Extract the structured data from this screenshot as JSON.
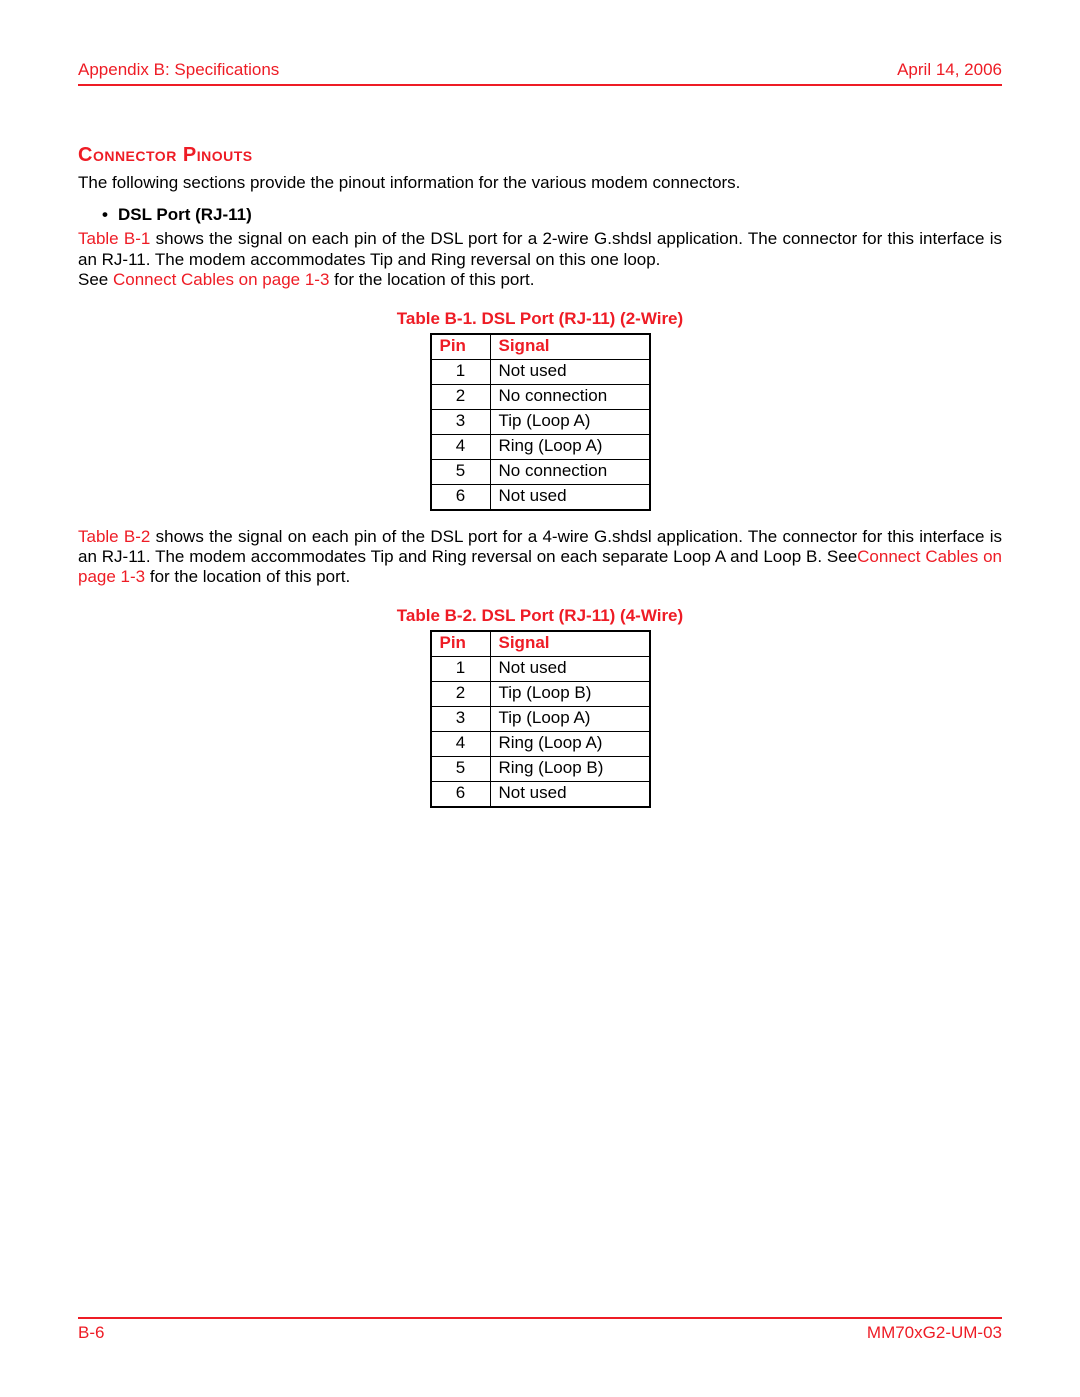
{
  "header": {
    "left": "Appendix B: Specifications",
    "right": "April 14, 2006"
  },
  "section_title": "Connector Pinouts",
  "intro": "The following sections provide the pinout information for the various modem connectors.",
  "bullet1": "DSL Port (RJ-11)",
  "para1": {
    "link1": "Table B-1",
    "text1": " shows the signal on each pin of the DSL port for a 2-wire G.shdsl application. The connector for this interface is an RJ-11. The modem accommodates Tip and Ring reversal on this one loop.",
    "text2a": "See ",
    "link2": "Connect Cables on page 1-3",
    "text2b": " for the location of this port."
  },
  "table1": {
    "caption": "Table B-1. DSL Port (RJ-11) (2-Wire)",
    "col_pin": "Pin",
    "col_signal": "Signal",
    "rows": [
      {
        "pin": "1",
        "signal": "Not used"
      },
      {
        "pin": "2",
        "signal": "No connection"
      },
      {
        "pin": "3",
        "signal": "Tip (Loop A)"
      },
      {
        "pin": "4",
        "signal": "Ring (Loop A)"
      },
      {
        "pin": "5",
        "signal": "No connection"
      },
      {
        "pin": "6",
        "signal": "Not used"
      }
    ]
  },
  "para2": {
    "link1": "Table B-2",
    "text1": " shows the signal on each pin of the DSL port for a 4-wire G.shdsl application. The connector for this interface is an RJ-11. The modem accommodates Tip and Ring reversal on each separate Loop A and Loop B. See",
    "link2": "Connect Cables on page 1-3",
    "text2": " for the location of this port."
  },
  "table2": {
    "caption": "Table B-2. DSL Port (RJ-11) (4-Wire)",
    "col_pin": "Pin",
    "col_signal": "Signal",
    "rows": [
      {
        "pin": "1",
        "signal": "Not used"
      },
      {
        "pin": "2",
        "signal": "Tip (Loop B)"
      },
      {
        "pin": "3",
        "signal": "Tip (Loop A)"
      },
      {
        "pin": "4",
        "signal": "Ring (Loop A)"
      },
      {
        "pin": "5",
        "signal": "Ring (Loop B)"
      },
      {
        "pin": "6",
        "signal": "Not used"
      }
    ]
  },
  "footer": {
    "left": "B-6",
    "right": "MM70xG2-UM-03"
  },
  "colors": {
    "accent": "#ee1c25",
    "text": "#000000",
    "background": "#ffffff"
  }
}
